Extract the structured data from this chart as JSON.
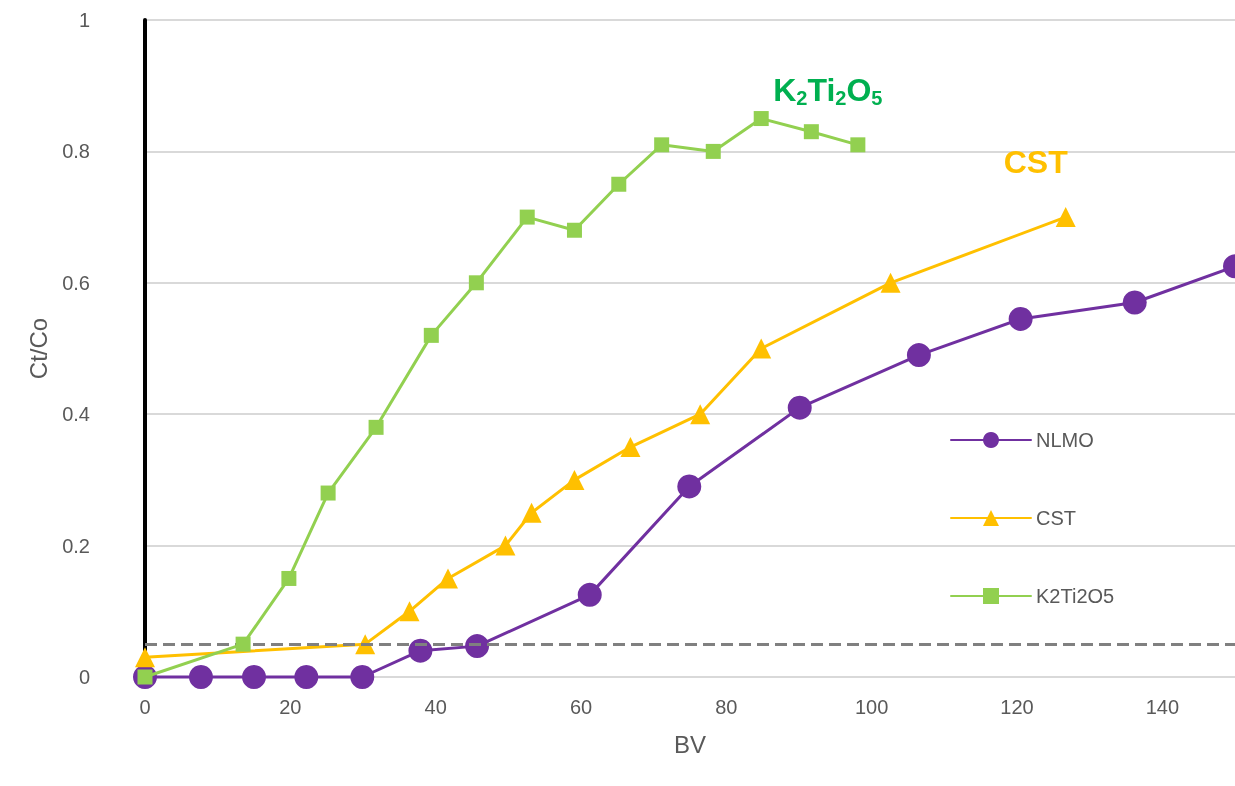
{
  "chart_data": {
    "type": "line",
    "xlabel": "BV",
    "ylabel": "Ct/Co",
    "xlim": [
      0,
      150
    ],
    "xticks": [
      0,
      20,
      40,
      60,
      80,
      100,
      120,
      140
    ],
    "ylim": [
      0,
      1
    ],
    "yticks": [
      0,
      0.2,
      0.4,
      0.6,
      0.8,
      1
    ],
    "grid": "y",
    "legend": "right",
    "series": [
      {
        "name": "NLMO",
        "color": "#7030a0",
        "marker": "circle",
        "x": [
          0,
          7.7,
          15,
          22.2,
          29.9,
          37.9,
          45.7,
          61.2,
          74.9,
          90.1,
          106.5,
          120.5,
          136.2,
          150
        ],
        "values": [
          0,
          0,
          0,
          0,
          0,
          0.04,
          0.047,
          0.125,
          0.29,
          0.41,
          0.49,
          0.545,
          0.57,
          0.625
        ]
      },
      {
        "name": "CST",
        "color": "#ffc000",
        "marker": "triangle",
        "x": [
          0,
          30.3,
          36.4,
          41.7,
          49.6,
          53.2,
          59.1,
          66.8,
          76.4,
          84.8,
          102.6,
          126.7
        ],
        "values": [
          0.03,
          0.05,
          0.1,
          0.15,
          0.2,
          0.25,
          0.3,
          0.35,
          0.4,
          0.5,
          0.6,
          0.7
        ]
      },
      {
        "name": "K2Ti2O5",
        "color": "#92d050",
        "marker": "square",
        "x": [
          0,
          13.5,
          19.8,
          25.2,
          31.8,
          39.4,
          45.6,
          52.6,
          59.1,
          65.2,
          71.1,
          78.2,
          84.8,
          91.7,
          98.1
        ],
        "values": [
          0,
          0.05,
          0.15,
          0.28,
          0.38,
          0.52,
          0.6,
          0.7,
          0.68,
          0.75,
          0.81,
          0.8,
          0.85,
          0.83,
          0.81
        ]
      }
    ],
    "ref_lines": [
      {
        "axis": "y",
        "value": 0.05,
        "color": "#808080",
        "line_style": "dashed"
      }
    ],
    "annotations": [
      "CST",
      "K$_{2}$Ti$_{2}$O$_{5}$"
    ]
  }
}
